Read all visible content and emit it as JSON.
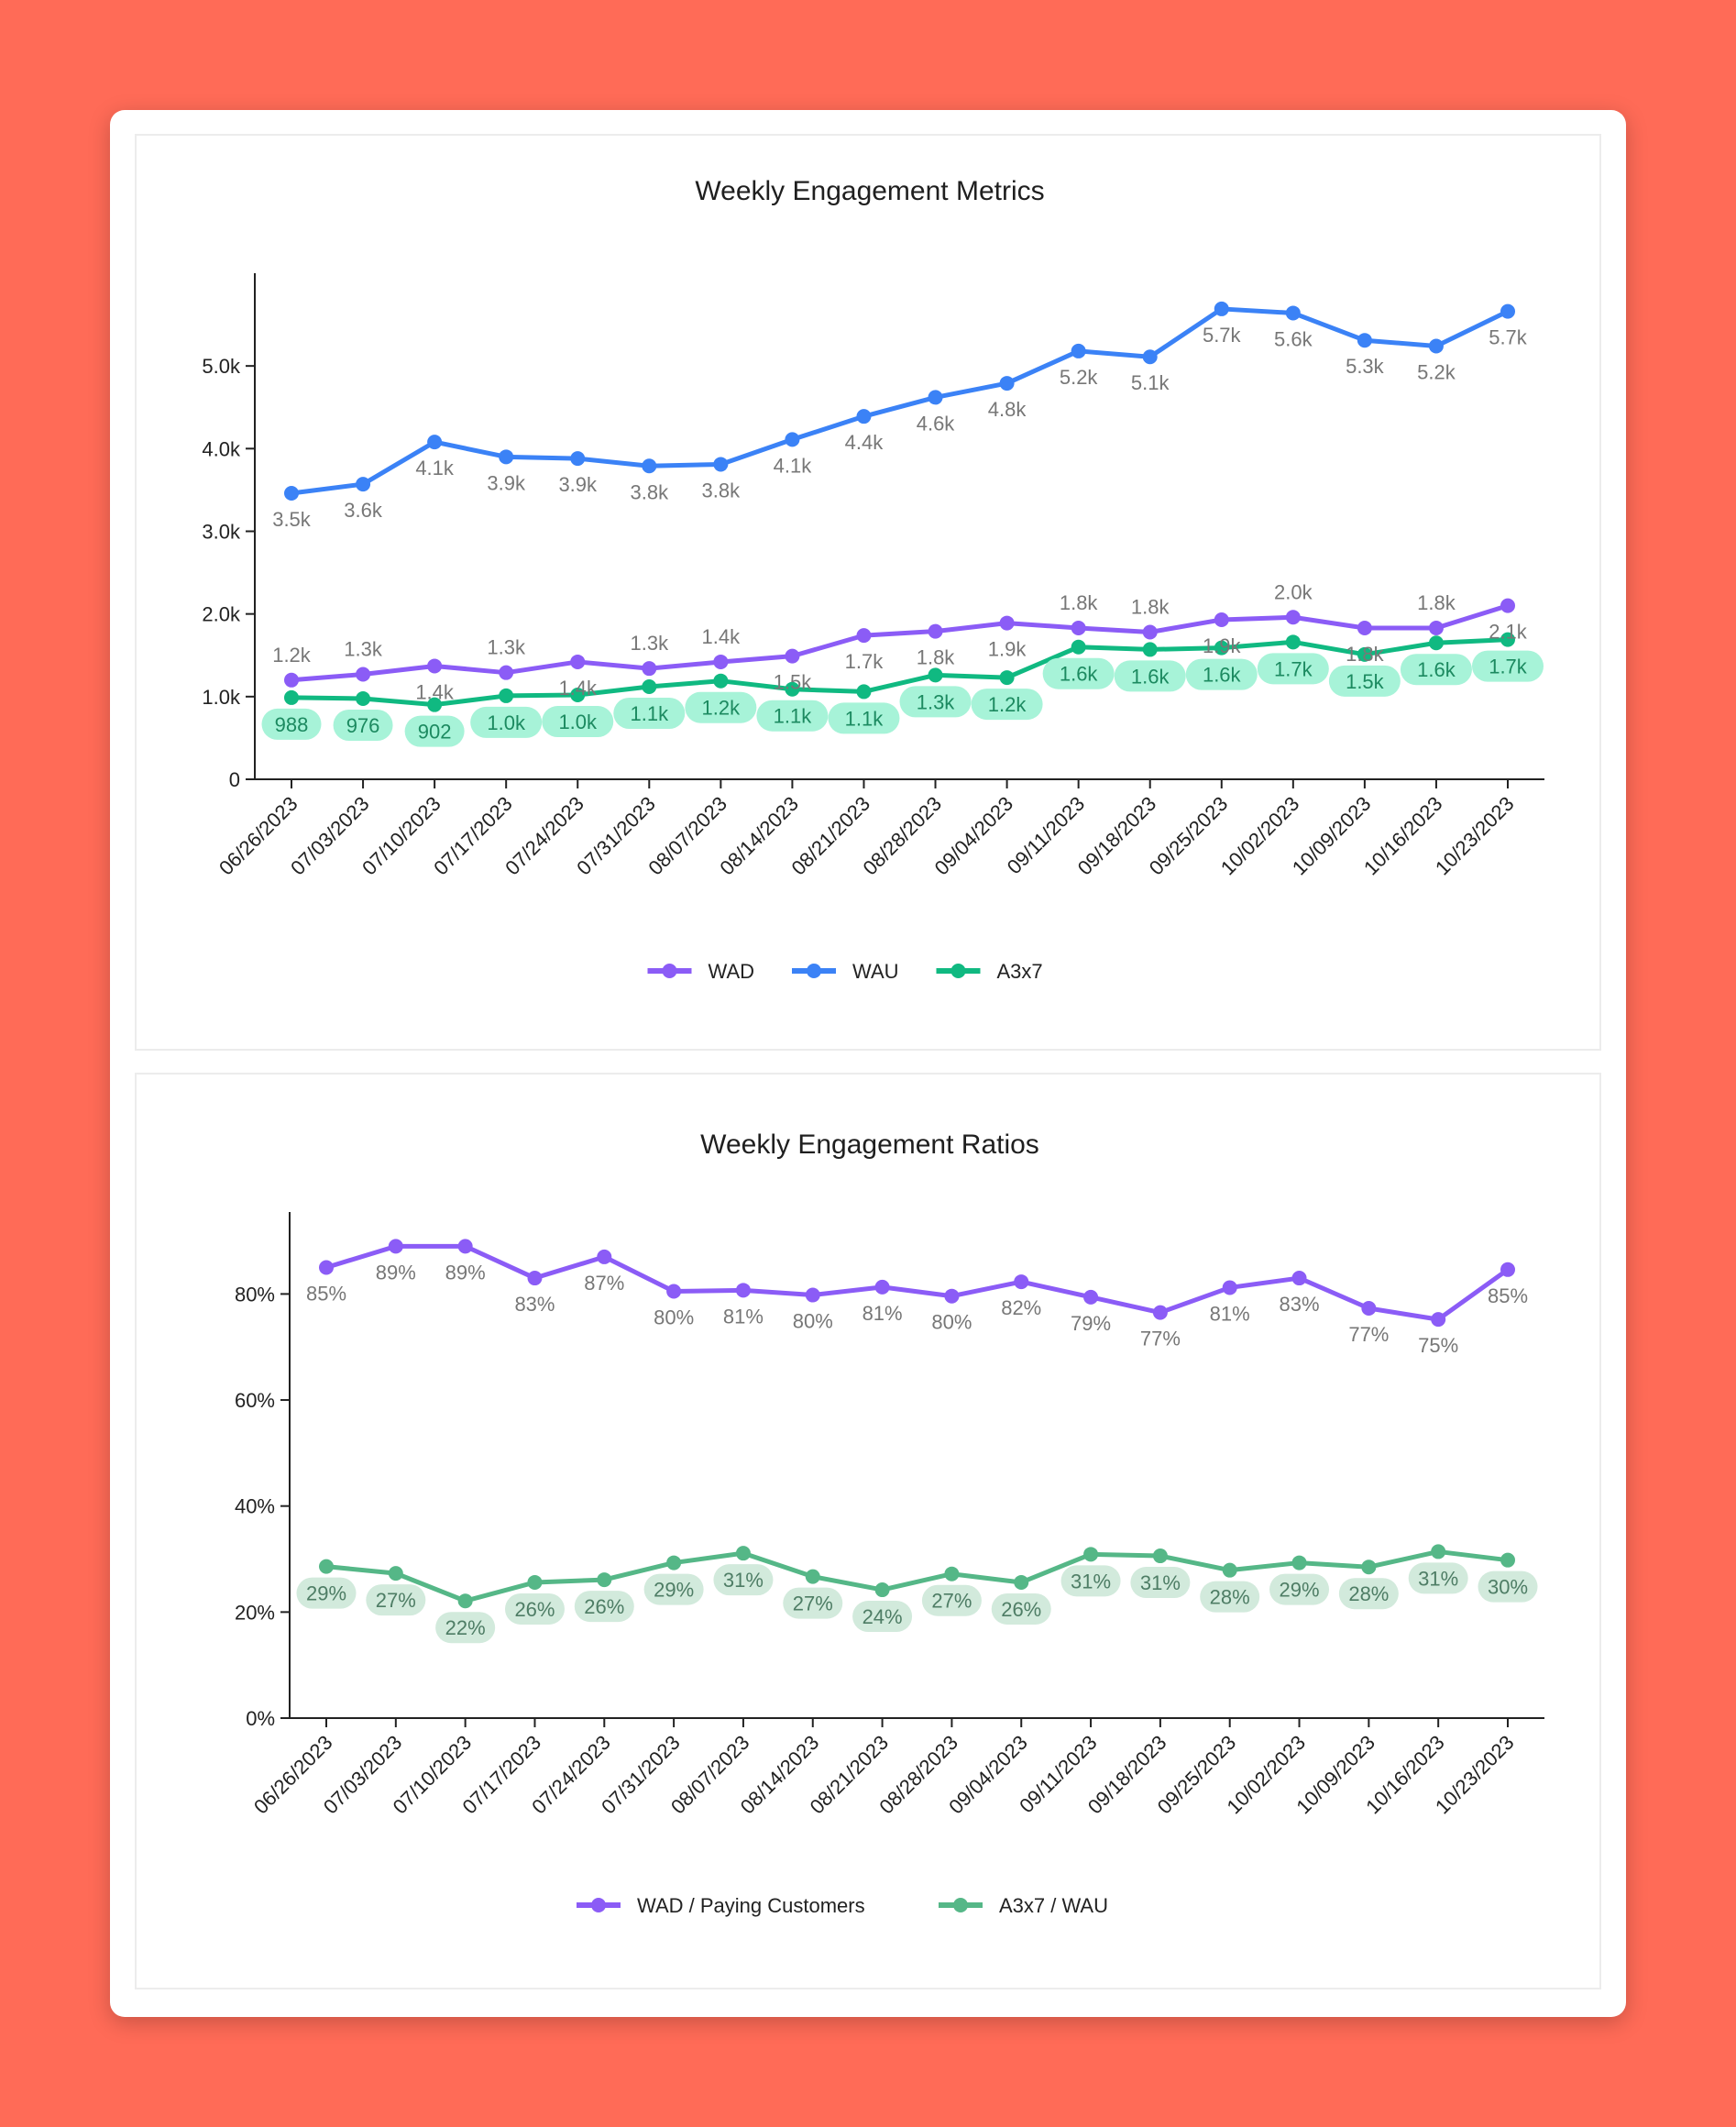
{
  "colors": {
    "background": "#ff6b57",
    "wad": "#8b5cf6",
    "wau": "#3b82f6",
    "a3x7": "#10b981",
    "a3x7_pill": "#a7f3d8",
    "ratio_green": "#55b787",
    "ratio_pill": "#d2eadc"
  },
  "chart_data": [
    {
      "type": "line",
      "title": "Weekly Engagement Metrics",
      "xlabel": "",
      "ylabel": "",
      "ylim": [
        0,
        5900
      ],
      "yticks": [
        0,
        1000,
        2000,
        3000,
        4000,
        5000
      ],
      "ytick_labels": [
        "0",
        "1.0k",
        "2.0k",
        "3.0k",
        "4.0k",
        "5.0k"
      ],
      "categories": [
        "06/26/2023",
        "07/03/2023",
        "07/10/2023",
        "07/17/2023",
        "07/24/2023",
        "07/31/2023",
        "08/07/2023",
        "08/14/2023",
        "08/21/2023",
        "08/28/2023",
        "09/04/2023",
        "09/11/2023",
        "09/18/2023",
        "09/25/2023",
        "10/02/2023",
        "10/09/2023",
        "10/16/2023",
        "10/23/2023"
      ],
      "legend_position": "bottom",
      "series": [
        {
          "name": "WAD",
          "color": "#8b5cf6",
          "values": [
            1200,
            1270,
            1370,
            1290,
            1420,
            1340,
            1420,
            1490,
            1740,
            1790,
            1890,
            1830,
            1780,
            1930,
            1960,
            1830,
            1830,
            2100
          ],
          "labels": [
            "1.2k",
            "1.3k",
            "1.4k",
            "1.3k",
            "1.4k",
            "1.3k",
            "1.4k",
            "1.5k",
            "1.7k",
            "1.8k",
            "1.9k",
            "1.8k",
            "1.8k",
            "1.9k",
            "2.0k",
            "1.8k",
            "1.8k",
            "2.1k"
          ],
          "label_style": "plain"
        },
        {
          "name": "WAU",
          "color": "#3b82f6",
          "values": [
            3460,
            3570,
            4080,
            3900,
            3880,
            3790,
            3810,
            4110,
            4390,
            4620,
            4790,
            5180,
            5110,
            5690,
            5640,
            5310,
            5240,
            5660
          ],
          "labels": [
            "3.5k",
            "3.6k",
            "4.1k",
            "3.9k",
            "3.9k",
            "3.8k",
            "3.8k",
            "4.1k",
            "4.4k",
            "4.6k",
            "4.8k",
            "5.2k",
            "5.1k",
            "5.7k",
            "5.6k",
            "5.3k",
            "5.2k",
            "5.7k"
          ],
          "label_style": "plain"
        },
        {
          "name": "A3x7",
          "color": "#10b981",
          "values": [
            988,
            976,
            902,
            1010,
            1020,
            1120,
            1190,
            1090,
            1060,
            1260,
            1230,
            1600,
            1570,
            1590,
            1660,
            1510,
            1650,
            1690
          ],
          "labels": [
            "988",
            "976",
            "902",
            "1.0k",
            "1.0k",
            "1.1k",
            "1.2k",
            "1.1k",
            "1.1k",
            "1.3k",
            "1.2k",
            "1.6k",
            "1.6k",
            "1.6k",
            "1.7k",
            "1.5k",
            "1.6k",
            "1.7k"
          ],
          "label_style": "pill"
        }
      ]
    },
    {
      "type": "line",
      "title": "Weekly Engagement Ratios",
      "xlabel": "",
      "ylabel": "",
      "ylim": [
        0,
        92
      ],
      "yticks": [
        0,
        20,
        40,
        60,
        80
      ],
      "ytick_labels": [
        "0%",
        "20%",
        "40%",
        "60%",
        "80%"
      ],
      "categories": [
        "06/26/2023",
        "07/03/2023",
        "07/10/2023",
        "07/17/2023",
        "07/24/2023",
        "07/31/2023",
        "08/07/2023",
        "08/14/2023",
        "08/21/2023",
        "08/28/2023",
        "09/04/2023",
        "09/11/2023",
        "09/18/2023",
        "09/25/2023",
        "10/02/2023",
        "10/09/2023",
        "10/16/2023",
        "10/23/2023"
      ],
      "legend_position": "bottom",
      "series": [
        {
          "name": "WAD / Paying Customers",
          "color": "#8b5cf6",
          "values": [
            85,
            89,
            89,
            83,
            87,
            80.5,
            80.7,
            79.8,
            81.3,
            79.6,
            82.3,
            79.4,
            76.5,
            81.2,
            83,
            77.3,
            75.2,
            84.6
          ],
          "labels": [
            "85%",
            "89%",
            "89%",
            "83%",
            "87%",
            "80%",
            "81%",
            "80%",
            "81%",
            "80%",
            "82%",
            "79%",
            "77%",
            "81%",
            "83%",
            "77%",
            "75%",
            "85%"
          ],
          "label_style": "plain"
        },
        {
          "name": "A3x7 / WAU",
          "color": "#55b787",
          "values": [
            28.6,
            27.3,
            22.1,
            25.6,
            26.1,
            29.3,
            31.1,
            26.7,
            24.2,
            27.2,
            25.6,
            30.9,
            30.6,
            27.9,
            29.3,
            28.5,
            31.4,
            29.8
          ],
          "labels": [
            "29%",
            "27%",
            "22%",
            "26%",
            "26%",
            "29%",
            "31%",
            "27%",
            "24%",
            "27%",
            "26%",
            "31%",
            "31%",
            "28%",
            "29%",
            "28%",
            "31%",
            "30%"
          ],
          "label_style": "pill"
        }
      ]
    }
  ]
}
